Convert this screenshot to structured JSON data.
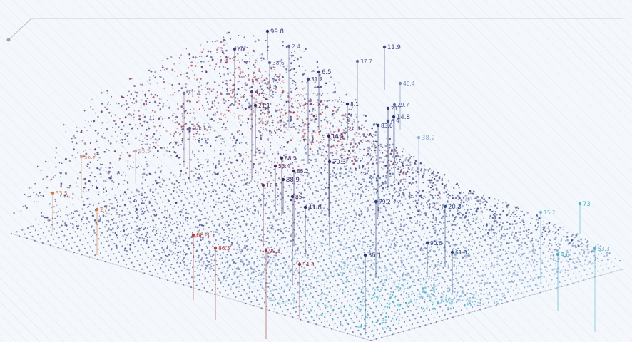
{
  "palette": {
    "background": "#f4f8fc",
    "hatch": "#dde6ef",
    "frame": "#b8c2cc",
    "warm": "#d9823e",
    "red": "#b8323a",
    "violet": "#3a2a6e",
    "navy": "#22336f",
    "sky": "#8fb3dc",
    "teal": "#3fb8c6"
  },
  "labels": [
    "99.8",
    "60.1",
    "2.4",
    "11.9",
    "37.7",
    "38.6",
    "6.5",
    "31.2",
    "40.4",
    "71.4",
    "8.1",
    "21.5",
    "4.2",
    "21.1",
    "29.7",
    "14.8",
    "6.9",
    "83.6",
    "23.1",
    "16.3",
    "55.7",
    "38.2",
    "95.5",
    "88.2",
    "70.3",
    "53.4",
    "85.2",
    "88.9",
    "16.9",
    "85",
    "41.8",
    "79.2",
    "33.5",
    "68.3",
    "99.3",
    "54.3",
    "35.1",
    "61.8",
    "15.2",
    "73",
    "4.6",
    "53.3",
    "27",
    "86.3",
    "90.6",
    "20.3"
  ]
}
